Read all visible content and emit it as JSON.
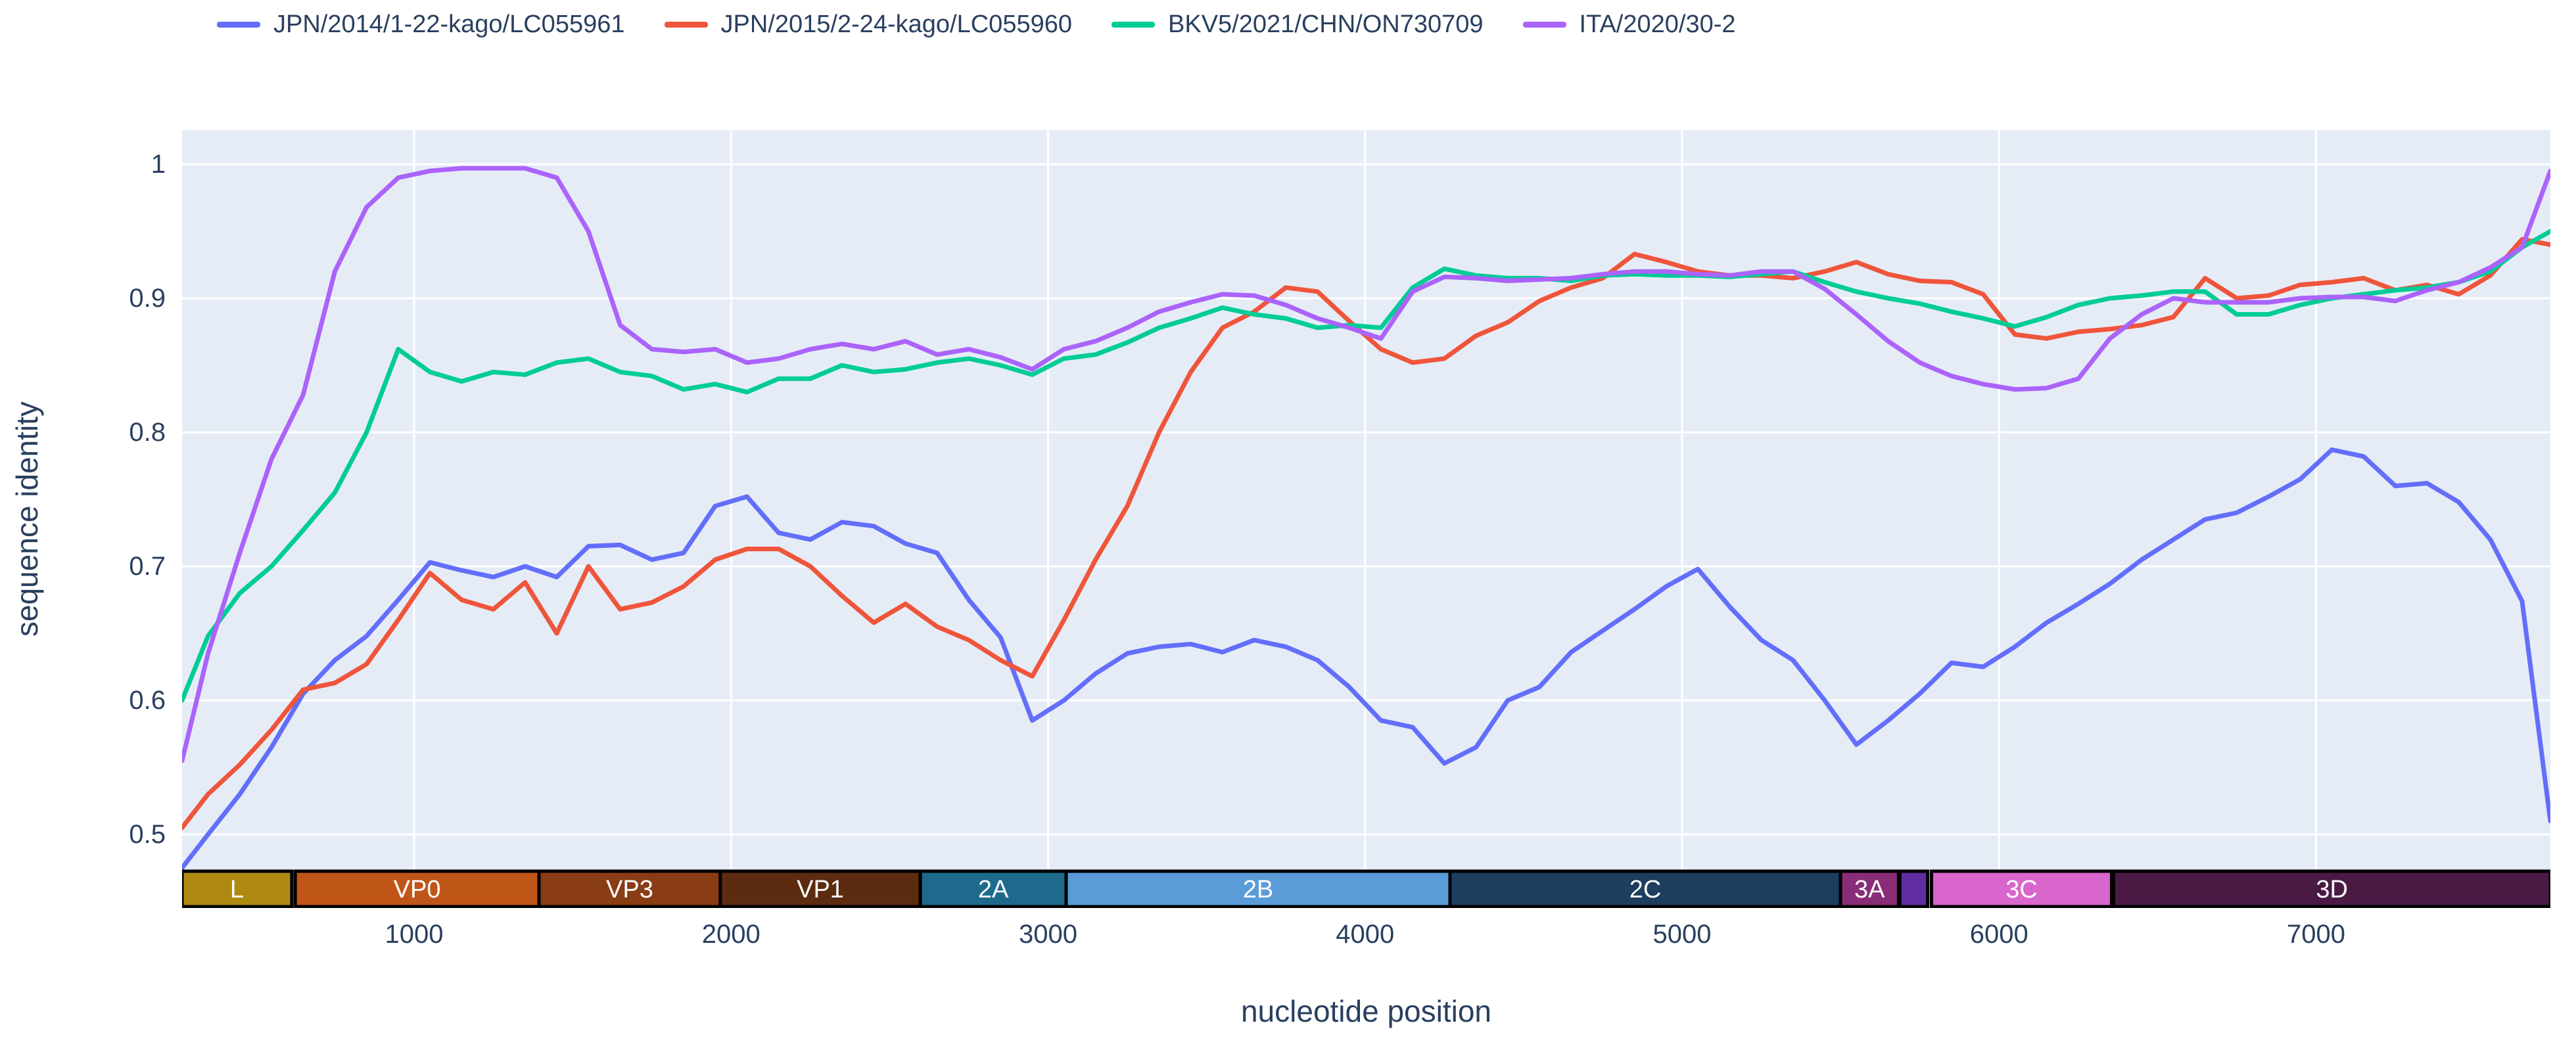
{
  "legend": {
    "entries": [
      {
        "label": "JPN/2014/1-22-kago/LC055961",
        "color": "#636EFA"
      },
      {
        "label": "JPN/2015/2-24-kago/LC055960",
        "color": "#EF553B"
      },
      {
        "label": "BKV5/2021/CHN/ON730709",
        "color": "#00CC96"
      },
      {
        "label": "ITA/2020/30-2",
        "color": "#AB63FA"
      }
    ]
  },
  "axes": {
    "y_title": "sequence identity",
    "x_title": "nucleotide position",
    "y_ticks": [
      {
        "label": "1",
        "value": 1
      },
      {
        "label": "0.9",
        "value": 0.9
      },
      {
        "label": "0.8",
        "value": 0.8
      },
      {
        "label": "0.7",
        "value": 0.7
      },
      {
        "label": "0.6",
        "value": 0.6
      },
      {
        "label": "0.5",
        "value": 0.5
      }
    ],
    "x_ticks": [
      {
        "label": "1000",
        "value": 1000
      },
      {
        "label": "2000",
        "value": 2000
      },
      {
        "label": "3000",
        "value": 3000
      },
      {
        "label": "4000",
        "value": 4000
      },
      {
        "label": "5000",
        "value": 5000
      },
      {
        "label": "6000",
        "value": 6000
      },
      {
        "label": "7000",
        "value": 7000
      }
    ]
  },
  "colors": {
    "plot_background": "#E5ECF6",
    "gridline": "#FFFFFF",
    "text": "#2a3f5f",
    "genome_bar_border": "#000000"
  },
  "chart_data": {
    "type": "line",
    "title": "",
    "xlabel": "nucleotide position",
    "ylabel": "sequence identity",
    "x_range": [
      250,
      7750
    ],
    "y_range": [
      0.445,
      1.025
    ],
    "grid": true,
    "legend_position": "top",
    "x_start": 250,
    "x_step": 100,
    "series": [
      {
        "name": "JPN/2014/1-22-kago/LC055961",
        "color": "#636EFA",
        "values": [
          0.475,
          0.5,
          0.53,
          0.565,
          0.605,
          0.63,
          0.648,
          0.675,
          0.703,
          0.697,
          0.692,
          0.7,
          0.692,
          0.715,
          0.716,
          0.705,
          0.71,
          0.745,
          0.752,
          0.725,
          0.72,
          0.733,
          0.73,
          0.717,
          0.71,
          0.675,
          0.647,
          0.585,
          0.6,
          0.62,
          0.635,
          0.64,
          0.642,
          0.636,
          0.645,
          0.64,
          0.63,
          0.61,
          0.585,
          0.58,
          0.553,
          0.565,
          0.6,
          0.61,
          0.636,
          0.652,
          0.668,
          0.685,
          0.698,
          0.67,
          0.645,
          0.63,
          0.6,
          0.567,
          0.585,
          0.605,
          0.628,
          0.625,
          0.64,
          0.658,
          0.672,
          0.687,
          0.705,
          0.72,
          0.735,
          0.74,
          0.752,
          0.765,
          0.787,
          0.782,
          0.76,
          0.762,
          0.748,
          0.72,
          0.674,
          0.51
        ]
      },
      {
        "name": "JPN/2015/2-24-kago/LC055960",
        "color": "#EF553B",
        "values": [
          0.505,
          0.53,
          0.552,
          0.578,
          0.608,
          0.613,
          0.627,
          0.66,
          0.695,
          0.675,
          0.668,
          0.688,
          0.65,
          0.7,
          0.668,
          0.673,
          0.685,
          0.705,
          0.713,
          0.713,
          0.7,
          0.678,
          0.658,
          0.672,
          0.655,
          0.645,
          0.63,
          0.618,
          0.66,
          0.705,
          0.745,
          0.8,
          0.845,
          0.878,
          0.89,
          0.908,
          0.905,
          0.883,
          0.862,
          0.852,
          0.855,
          0.872,
          0.882,
          0.898,
          0.908,
          0.915,
          0.933,
          0.927,
          0.92,
          0.917,
          0.917,
          0.915,
          0.92,
          0.927,
          0.918,
          0.913,
          0.912,
          0.903,
          0.873,
          0.87,
          0.875,
          0.877,
          0.88,
          0.886,
          0.915,
          0.9,
          0.902,
          0.91,
          0.912,
          0.915,
          0.906,
          0.91,
          0.903,
          0.917,
          0.944,
          0.94
        ]
      },
      {
        "name": "BKV5/2021/CHN/ON730709",
        "color": "#00CC96",
        "values": [
          0.6,
          0.648,
          0.68,
          0.7,
          0.727,
          0.755,
          0.8,
          0.862,
          0.845,
          0.838,
          0.845,
          0.843,
          0.852,
          0.855,
          0.845,
          0.842,
          0.832,
          0.836,
          0.83,
          0.84,
          0.84,
          0.85,
          0.845,
          0.847,
          0.852,
          0.855,
          0.85,
          0.843,
          0.855,
          0.858,
          0.867,
          0.878,
          0.885,
          0.893,
          0.888,
          0.885,
          0.878,
          0.88,
          0.878,
          0.908,
          0.922,
          0.917,
          0.915,
          0.915,
          0.913,
          0.917,
          0.918,
          0.917,
          0.917,
          0.916,
          0.918,
          0.92,
          0.912,
          0.905,
          0.9,
          0.896,
          0.89,
          0.885,
          0.879,
          0.886,
          0.895,
          0.9,
          0.902,
          0.905,
          0.905,
          0.888,
          0.888,
          0.895,
          0.9,
          0.903,
          0.906,
          0.908,
          0.912,
          0.92,
          0.938,
          0.95
        ]
      },
      {
        "name": "ITA/2020/30-2",
        "color": "#AB63FA",
        "values": [
          0.555,
          0.635,
          0.71,
          0.78,
          0.828,
          0.92,
          0.968,
          0.99,
          0.995,
          0.997,
          0.997,
          0.997,
          0.99,
          0.95,
          0.88,
          0.862,
          0.86,
          0.862,
          0.852,
          0.855,
          0.862,
          0.866,
          0.862,
          0.868,
          0.858,
          0.862,
          0.856,
          0.847,
          0.862,
          0.868,
          0.878,
          0.89,
          0.897,
          0.903,
          0.902,
          0.895,
          0.885,
          0.878,
          0.87,
          0.905,
          0.916,
          0.915,
          0.913,
          0.914,
          0.915,
          0.918,
          0.92,
          0.92,
          0.918,
          0.917,
          0.92,
          0.92,
          0.907,
          0.888,
          0.868,
          0.852,
          0.842,
          0.836,
          0.832,
          0.833,
          0.84,
          0.87,
          0.888,
          0.9,
          0.897,
          0.897,
          0.897,
          0.9,
          0.901,
          0.901,
          0.898,
          0.906,
          0.912,
          0.923,
          0.938,
          0.995
        ]
      }
    ],
    "genome_bar": {
      "segments": [
        {
          "label": "L",
          "start": 268,
          "end": 614,
          "color": "#AE8B10"
        },
        {
          "label": "VP0",
          "start": 625,
          "end": 1394,
          "color": "#C05518"
        },
        {
          "label": "VP3",
          "start": 1394,
          "end": 1966,
          "color": "#8A3C15"
        },
        {
          "label": "VP1",
          "start": 1966,
          "end": 2597,
          "color": "#5D2B10"
        },
        {
          "label": "2A",
          "start": 2597,
          "end": 3057,
          "color": "#1D6A8D"
        },
        {
          "label": "2B",
          "start": 3057,
          "end": 4268,
          "color": "#5B9CD8"
        },
        {
          "label": "2C",
          "start": 4268,
          "end": 5500,
          "color": "#1D3E5E"
        },
        {
          "label": "3A",
          "start": 5500,
          "end": 5683,
          "color": "#8A2D78"
        },
        {
          "label": "",
          "start": 5687,
          "end": 5775,
          "color": "#5F2DA0"
        },
        {
          "label": "3C",
          "start": 5787,
          "end": 6355,
          "color": "#D966CC"
        },
        {
          "label": "3D",
          "start": 6361,
          "end": 7740,
          "color": "#4A1A45"
        }
      ]
    }
  }
}
